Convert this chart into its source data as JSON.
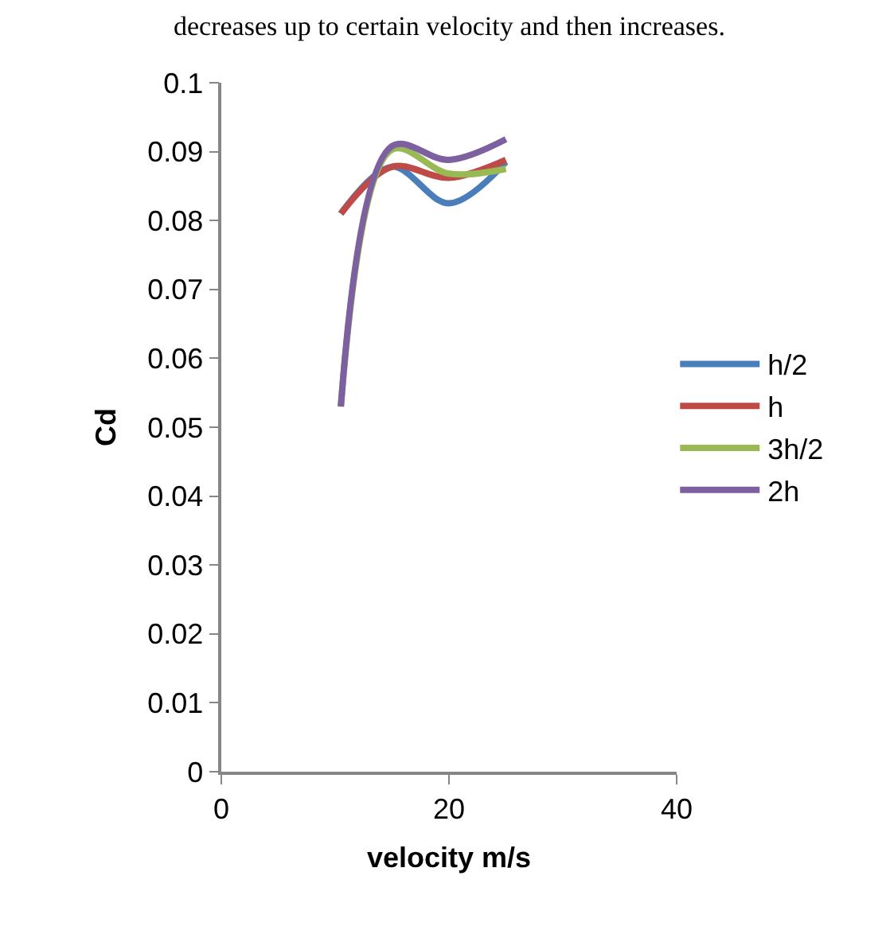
{
  "chart_data": {
    "type": "line",
    "xlabel": "velocity m/s",
    "ylabel": "Cd",
    "annotations": [
      "decreases up to certain velocity and then increases."
    ],
    "x": [
      10.5,
      15,
      20,
      25
    ],
    "series": [
      {
        "name": "h/2",
        "color": "#4a7ebb",
        "values": [
          0.081,
          0.0878,
          0.0825,
          0.0885
        ]
      },
      {
        "name": "h",
        "color": "#be4b48",
        "values": [
          0.081,
          0.0878,
          0.0862,
          0.0888
        ]
      },
      {
        "name": "3h/2",
        "color": "#98b954",
        "values": [
          0.053,
          0.0903,
          0.0868,
          0.0875
        ]
      },
      {
        "name": "2h",
        "color": "#7d60a0",
        "values": [
          0.053,
          0.0908,
          0.0888,
          0.0918
        ]
      }
    ],
    "xlim": [
      0,
      40
    ],
    "xticks": [
      0,
      20,
      40
    ],
    "ylim": [
      0,
      0.1
    ],
    "yticks": [
      0,
      0.01,
      0.02,
      0.03,
      0.04,
      0.05,
      0.06,
      0.07,
      0.08,
      0.09,
      0.1
    ],
    "legend": "right",
    "marker": "none",
    "line_style": "solid"
  }
}
